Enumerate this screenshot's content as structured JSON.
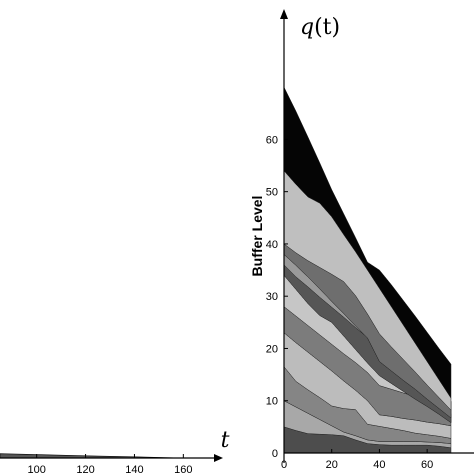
{
  "chart_data": [
    {
      "type": "area",
      "title": "",
      "xlabel": "t",
      "ylabel": "",
      "xlim": [
        85,
        175
      ],
      "ylim": [
        0,
        75
      ],
      "xticks": [
        100,
        120,
        140,
        160
      ],
      "series": [
        {
          "color": "#555555",
          "x": [
            85,
            100,
            120,
            140,
            160
          ],
          "y": [
            2.5,
            2.0,
            1.3,
            0.7,
            0
          ]
        }
      ]
    },
    {
      "type": "area",
      "title": "",
      "axis_var": "q(t)",
      "xlabel": "",
      "ylabel": "Buffer Level",
      "xlim": [
        0,
        70
      ],
      "ylim": [
        0,
        75
      ],
      "xticks": [
        0,
        20,
        40,
        60
      ],
      "yticks": [
        0,
        10,
        20,
        30,
        40,
        50,
        60
      ],
      "boundaries": {
        "x": [
          0,
          5,
          10,
          15,
          20,
          25,
          30,
          35,
          40,
          45,
          50,
          55,
          60,
          65,
          70
        ],
        "curves": [
          [
            5,
            4.3,
            3.7,
            3.6,
            3.5,
            3.3,
            2.5,
            1.8,
            1.6,
            1.5,
            1.5,
            1.5,
            1.5,
            1.3,
            1.0
          ],
          [
            10,
            8.8,
            7.6,
            6.4,
            5.2,
            4.0,
            3.3,
            2.5,
            2.2,
            2.2,
            2.2,
            2.2,
            2.1,
            2.0,
            1.8
          ],
          [
            16.5,
            13.7,
            12.1,
            10.6,
            9.0,
            8.5,
            8.3,
            5.5,
            5.1,
            4.7,
            4.3,
            3.8,
            3.5,
            3.2,
            2.8
          ],
          [
            23,
            21.1,
            19.3,
            17.5,
            15.7,
            13.8,
            12.0,
            10.0,
            7.3,
            7.0,
            6.6,
            6.3,
            5.9,
            5.6,
            5.2
          ],
          [
            28,
            26.2,
            24.4,
            22.6,
            20.8,
            19.0,
            17.3,
            15.4,
            12.9,
            12.2,
            11.5,
            10.8,
            10.0,
            8.5,
            7.5
          ],
          [
            34,
            31.3,
            28.6,
            26.3,
            25.0,
            22.4,
            19.8,
            17.2,
            14.8,
            13.3,
            11.8,
            10.3,
            8.9,
            7.4,
            5.8
          ],
          [
            36,
            33.7,
            31.8,
            29.8,
            27.9,
            26.0,
            24.0,
            22.1,
            19.5,
            17.9,
            16.3,
            14.7,
            13.1,
            11.5,
            9.9
          ],
          [
            38,
            35.9,
            33.7,
            31.4,
            29.0,
            26.7,
            24.3,
            22.0,
            17.5,
            15.7,
            13.9,
            12.2,
            10.3,
            8.5,
            6.7
          ],
          [
            40,
            38.3,
            36.8,
            35.5,
            34.2,
            32.8,
            30.1,
            26.6,
            22.8,
            20.3,
            17.9,
            15.5,
            13.0,
            10.6,
            8.2
          ],
          [
            54,
            51.4,
            49.0,
            47.8,
            45.2,
            41.8,
            38.5,
            35.0,
            31.5,
            28.0,
            24.5,
            21.0,
            17.5,
            14.0,
            10.5
          ],
          [
            70,
            65.4,
            60.5,
            55.5,
            50.4,
            45.8,
            41.2,
            36.5,
            35.0,
            32.2,
            29.2,
            26.2,
            23.1,
            20.0,
            17.0
          ]
        ],
        "fills": [
          "#4d4d4d",
          "#a8a8a8",
          "#858585",
          "#bcbcbc",
          "#7c7c7c",
          "#c6c6c6",
          "#565656",
          "#9a9a9a",
          "#6e6e6e",
          "#bfbfbf",
          "#050505"
        ]
      }
    }
  ]
}
